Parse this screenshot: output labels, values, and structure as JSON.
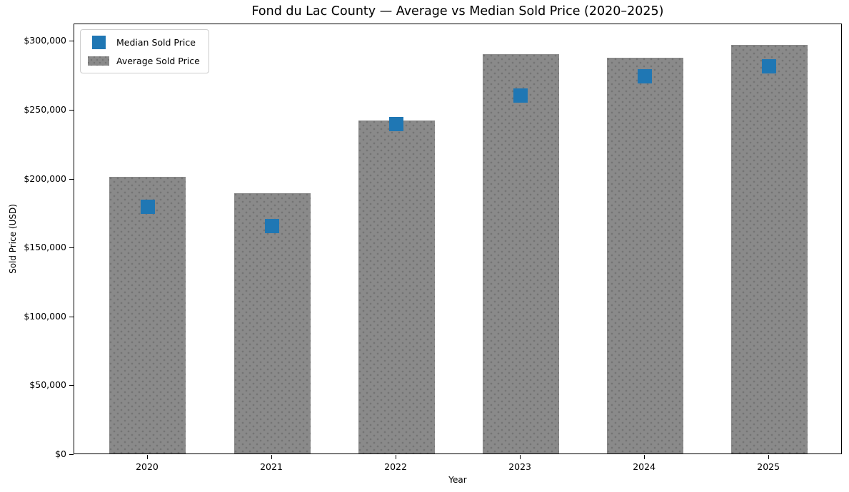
{
  "chart_data": {
    "type": "bar",
    "title": "Fond du Lac County — Average vs Median Sold Price (2020–2025)",
    "xlabel": "Year",
    "ylabel": "Sold Price (USD)",
    "categories": [
      "2020",
      "2021",
      "2022",
      "2023",
      "2024",
      "2025"
    ],
    "series": [
      {
        "name": "Average Sold Price",
        "type": "bar",
        "color": "#8a8a8a",
        "hatch": "dots",
        "values": [
          201000,
          189000,
          241500,
          290000,
          287500,
          296500
        ]
      },
      {
        "name": "Median Sold Price",
        "type": "scatter",
        "marker": "square",
        "color": "#1f77b4",
        "values": [
          180000,
          166000,
          240000,
          261000,
          275000,
          282000
        ]
      }
    ],
    "ylim": [
      0,
      312600
    ],
    "yticks": [
      {
        "value": 0,
        "label": "$0"
      },
      {
        "value": 50000,
        "label": "$50,000"
      },
      {
        "value": 100000,
        "label": "$100,000"
      },
      {
        "value": 150000,
        "label": "$150,000"
      },
      {
        "value": 200000,
        "label": "$200,000"
      },
      {
        "value": 250000,
        "label": "$250,000"
      },
      {
        "value": 300000,
        "label": "$300,000"
      }
    ],
    "grid": false,
    "legend_position": "upper-left",
    "legend_items": [
      {
        "label": "Median Sold Price",
        "swatch": "square-marker",
        "color": "#1f77b4"
      },
      {
        "label": "Average Sold Price",
        "swatch": "bar-patch",
        "color": "#8a8a8a"
      }
    ]
  }
}
